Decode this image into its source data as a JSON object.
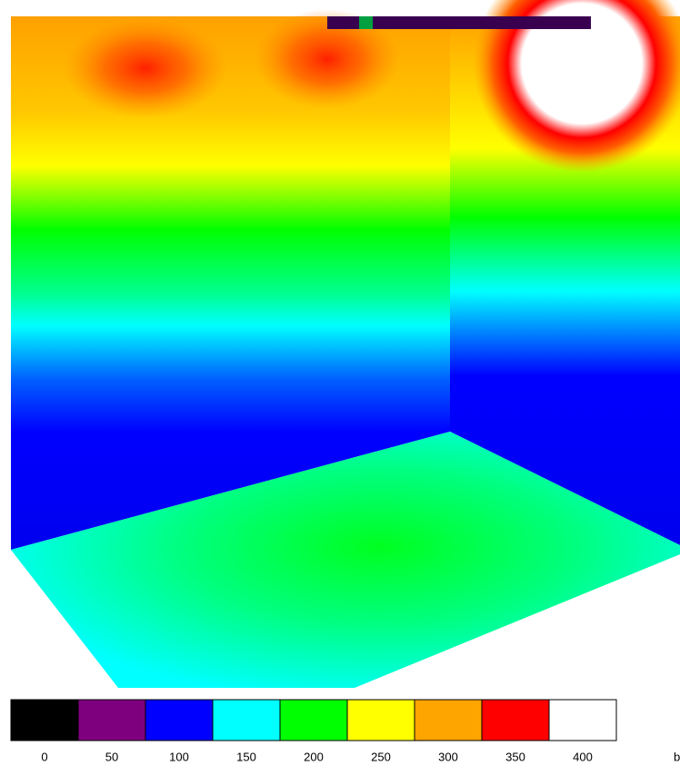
{
  "legend": {
    "swatches": [
      {
        "color": "#000000",
        "label": "0"
      },
      {
        "color": "#7f007f",
        "label": "50"
      },
      {
        "color": "#0000ff",
        "label": "100"
      },
      {
        "color": "#00ffff",
        "label": "150"
      },
      {
        "color": "#00ff00",
        "label": "200"
      },
      {
        "color": "#ffff00",
        "label": "250"
      },
      {
        "color": "#ffa500",
        "label": "300"
      },
      {
        "color": "#ff0000",
        "label": "350"
      },
      {
        "color": "#ffffff",
        "label": "400"
      }
    ],
    "unit": "b"
  }
}
